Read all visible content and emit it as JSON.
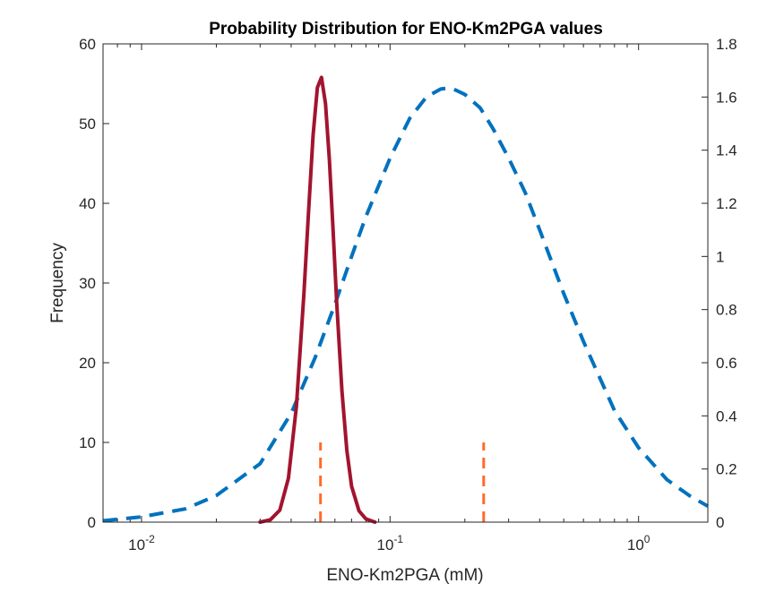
{
  "chart_data": {
    "type": "line",
    "title": "Probability Distribution for ENO-Km2PGA values",
    "xlabel": "ENO-Km2PGA (mM)",
    "ylabel": "Frequency",
    "xscale": "log",
    "xlim": [
      0.007,
      1.9
    ],
    "ylim": [
      0,
      60
    ],
    "y2lim": [
      0,
      1.8
    ],
    "x_tick_labels": [
      {
        "base": "10",
        "exp": "-2",
        "value": 0.01
      },
      {
        "base": "10",
        "exp": "-1",
        "value": 0.1
      },
      {
        "base": "10",
        "exp": "0",
        "value": 1
      }
    ],
    "y_ticks": [
      0,
      10,
      20,
      30,
      40,
      50,
      60
    ],
    "y2_ticks": [
      0,
      0.2,
      0.4,
      0.6,
      0.8,
      1,
      1.2,
      1.4,
      1.6,
      1.8
    ],
    "y2_tick_labels": [
      "0",
      "0.2",
      "0.4",
      "0.6",
      "0.8",
      "1",
      "1.2",
      "1.4",
      "1.6",
      "1.8"
    ],
    "grid": false,
    "series": [
      {
        "axis": "left",
        "style": "solid",
        "color": "#A2142F",
        "x": [
          0.03,
          0.033,
          0.036,
          0.039,
          0.042,
          0.045,
          0.047,
          0.049,
          0.051,
          0.053,
          0.055,
          0.057,
          0.059,
          0.061,
          0.064,
          0.067,
          0.07,
          0.075,
          0.08,
          0.087
        ],
        "y": [
          0.0,
          0.3,
          1.5,
          5.5,
          14.5,
          28.5,
          39.0,
          48.5,
          54.5,
          55.8,
          52.5,
          45.5,
          36.5,
          27.5,
          16.5,
          9.0,
          4.5,
          1.4,
          0.4,
          0.0
        ]
      },
      {
        "axis": "right",
        "style": "dashed",
        "color": "#0072BD",
        "x": [
          0.007,
          0.01,
          0.015,
          0.02,
          0.03,
          0.04,
          0.05,
          0.06,
          0.07,
          0.08,
          0.1,
          0.12,
          0.14,
          0.16,
          0.17,
          0.18,
          0.2,
          0.23,
          0.26,
          0.3,
          0.35,
          0.4,
          0.5,
          0.6,
          0.8,
          1.0,
          1.3,
          1.6,
          1.9
        ],
        "y": [
          0.005,
          0.02,
          0.05,
          0.1,
          0.22,
          0.41,
          0.62,
          0.82,
          1.0,
          1.15,
          1.37,
          1.52,
          1.6,
          1.63,
          1.633,
          1.63,
          1.61,
          1.56,
          1.48,
          1.37,
          1.24,
          1.1,
          0.86,
          0.68,
          0.42,
          0.28,
          0.16,
          0.1,
          0.06
        ]
      },
      {
        "axis": "left",
        "style": "dashed",
        "color": "#FF6A2B",
        "x": [
          0.0525,
          0.0525
        ],
        "y": [
          0,
          10
        ]
      },
      {
        "axis": "left",
        "style": "dashed",
        "color": "#FF6A2B",
        "x": [
          0.238,
          0.238
        ],
        "y": [
          0,
          10
        ]
      }
    ]
  }
}
